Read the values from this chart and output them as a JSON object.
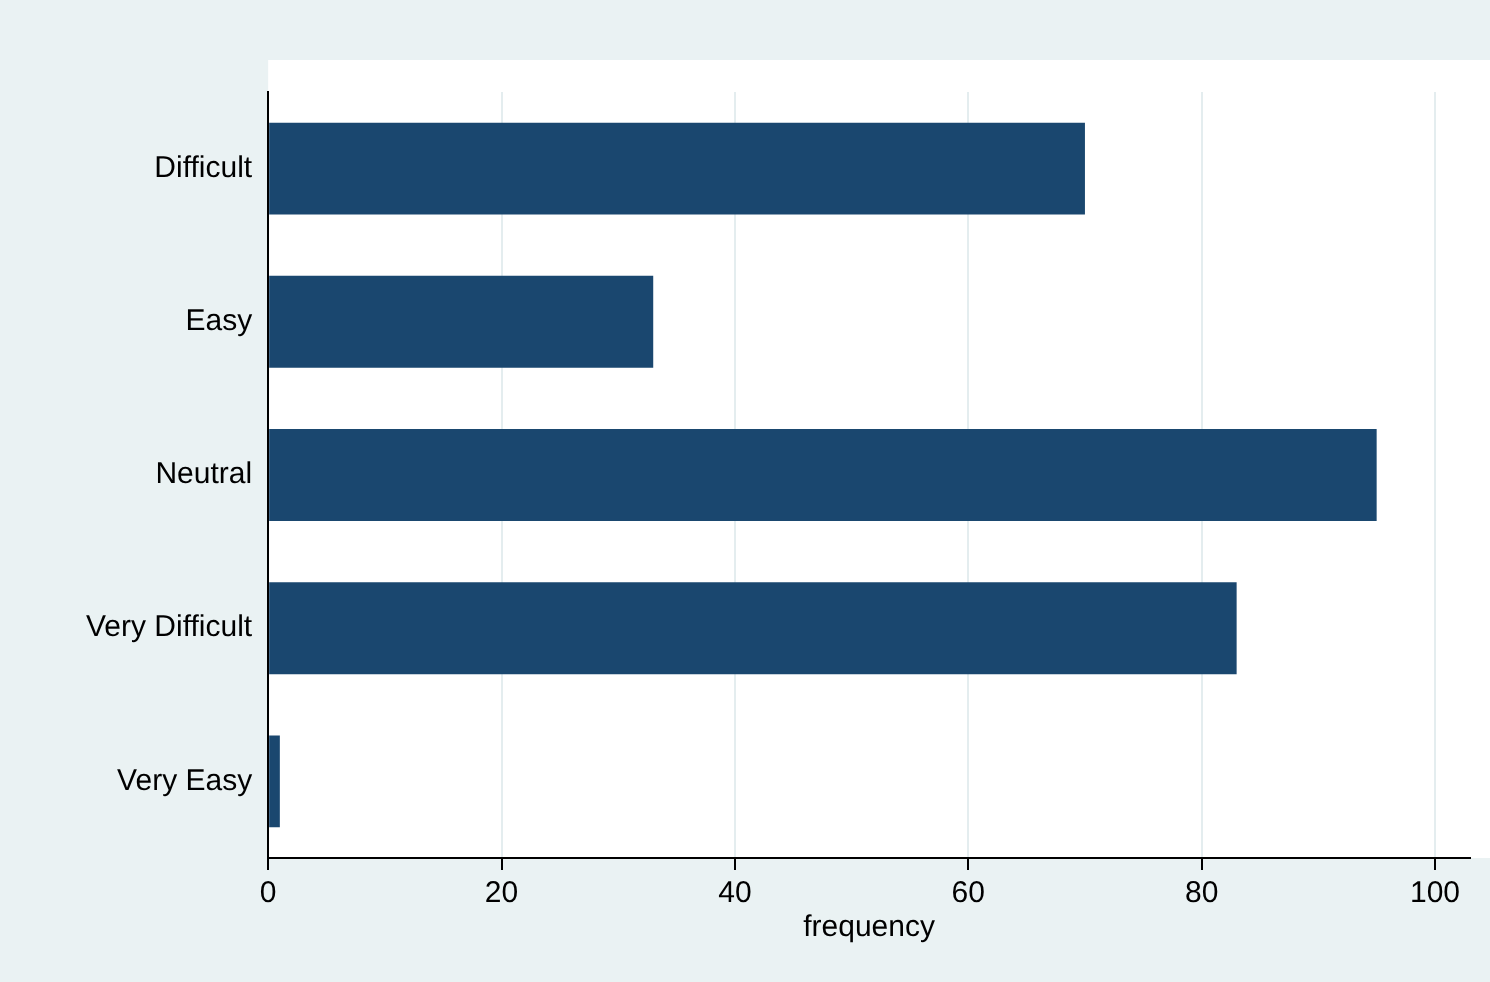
{
  "chart_data": {
    "type": "bar",
    "orientation": "horizontal",
    "xlabel": "frequency",
    "categories": [
      "Difficult",
      "Easy",
      "Neutral",
      "Very Difficult",
      "Very Easy"
    ],
    "values": [
      70,
      33,
      95,
      83,
      1
    ],
    "color": "#1a476f",
    "xlim": [
      0,
      103
    ],
    "xticks": [
      0,
      20,
      40,
      60,
      80,
      100
    ],
    "grid": "x"
  }
}
